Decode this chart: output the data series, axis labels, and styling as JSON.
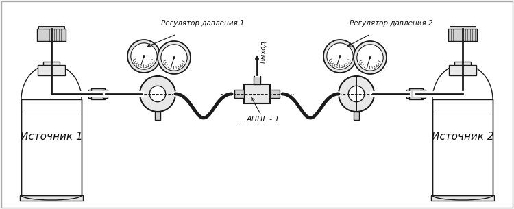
{
  "bg_color": "#f5f5f5",
  "line_color": "#1a1a1a",
  "fill_color": "#ffffff",
  "fill_light": "#e8e8e8",
  "fill_mid": "#d0d0d0",
  "label_reg1": "Регулятор давления 1",
  "label_reg2": "Регулятор давления 2",
  "label_src1": "Источник 1",
  "label_src2": "Источник 2",
  "label_apg": "АППГ - 1",
  "label_vyhod": "Выход",
  "figsize": [
    7.5,
    3.05
  ],
  "dpi": 100
}
